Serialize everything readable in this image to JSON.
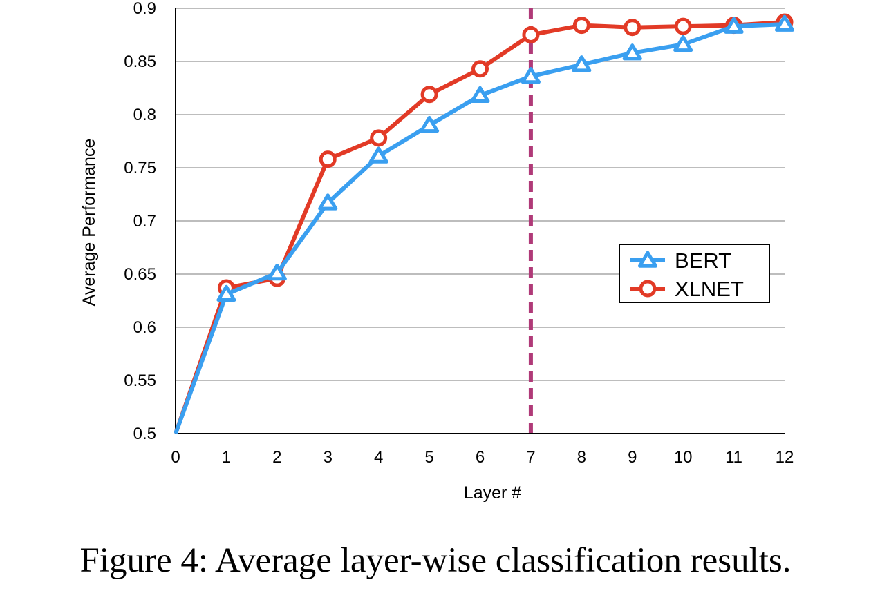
{
  "colors": {
    "bert": "#3a9ff0",
    "xlnet": "#e23a26",
    "marker_line": "#b03a78",
    "grid": "#bdbdbd",
    "axis": "#000000"
  },
  "chart_data": {
    "type": "line",
    "title": "",
    "xlabel": "Layer #",
    "ylabel": "Average Performance",
    "x": [
      0,
      1,
      2,
      3,
      4,
      5,
      6,
      7,
      8,
      9,
      10,
      11,
      12
    ],
    "xlim": [
      0,
      12
    ],
    "ylim": [
      0.5,
      0.9
    ],
    "y_ticks": [
      "0.5",
      "0.55",
      "0.6",
      "0.65",
      "0.7",
      "0.75",
      "0.8",
      "0.85",
      "0.9"
    ],
    "x_ticks": [
      "0",
      "1",
      "2",
      "3",
      "4",
      "5",
      "6",
      "7",
      "8",
      "9",
      "10",
      "11",
      "12"
    ],
    "grid": "horizontal",
    "legend_position": "right",
    "vertical_marker_x": 7,
    "series": [
      {
        "name": "BERT",
        "marker": "triangle",
        "values": [
          0.5,
          0.631,
          0.651,
          0.717,
          0.761,
          0.79,
          0.818,
          0.836,
          0.847,
          0.858,
          0.866,
          0.883,
          0.885
        ]
      },
      {
        "name": "XLNET",
        "marker": "circle",
        "values": [
          0.5,
          0.637,
          0.646,
          0.758,
          0.778,
          0.819,
          0.843,
          0.875,
          0.884,
          0.882,
          0.883,
          0.884,
          0.887
        ]
      }
    ]
  },
  "caption": "Figure 4: Average layer-wise classification results."
}
